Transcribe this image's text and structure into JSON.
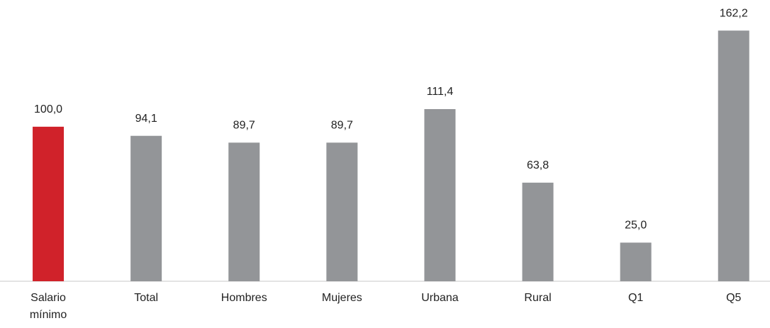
{
  "chart_data": {
    "type": "bar",
    "categories": [
      "Salario mínimo",
      "Total",
      "Hombres",
      "Mujeres",
      "Urbana",
      "Rural",
      "Q1",
      "Q5"
    ],
    "values": [
      100.0,
      94.1,
      89.7,
      89.7,
      111.4,
      63.8,
      25.0,
      162.2
    ],
    "value_labels": [
      "100,0",
      "94,1",
      "89,7",
      "89,7",
      "111,4",
      "63,8",
      "25,0",
      "162,2"
    ],
    "colors": [
      "#d0222a",
      "#939598",
      "#939598",
      "#939598",
      "#939598",
      "#939598",
      "#939598",
      "#939598"
    ],
    "ylim": [
      0,
      182
    ]
  }
}
